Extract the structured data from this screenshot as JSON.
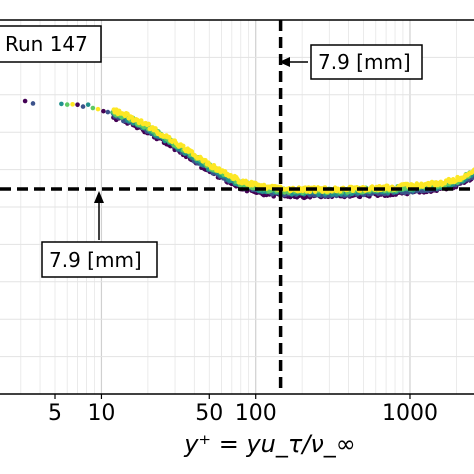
{
  "chart_data": {
    "type": "scatter",
    "x_scale": "log",
    "xlim": [
      2.2,
      2600
    ],
    "x_ticks": [
      {
        "value": 5,
        "label": "5"
      },
      {
        "value": 10,
        "label": "10"
      },
      {
        "value": 50,
        "label": "50"
      },
      {
        "value": 100,
        "label": "100"
      },
      {
        "value": 1000,
        "label": "1000"
      }
    ],
    "xlabel": "y⁺ = yu_τ/ν_∞",
    "ylim": [
      0,
      1
    ],
    "y_ticks_labeled": false,
    "grid": true,
    "legend_box": {
      "text": "Run 147",
      "placement": "top-left"
    },
    "colormap": [
      "#440154",
      "#3b528b",
      "#21918c",
      "#5ec962",
      "#fde725"
    ],
    "trend": [
      {
        "x": 3,
        "y": 0.78
      },
      {
        "x": 4,
        "y": 0.775
      },
      {
        "x": 6,
        "y": 0.775
      },
      {
        "x": 8,
        "y": 0.77
      },
      {
        "x": 10,
        "y": 0.76
      },
      {
        "x": 15,
        "y": 0.735
      },
      {
        "x": 20,
        "y": 0.71
      },
      {
        "x": 30,
        "y": 0.665
      },
      {
        "x": 50,
        "y": 0.605
      },
      {
        "x": 80,
        "y": 0.56
      },
      {
        "x": 120,
        "y": 0.543
      },
      {
        "x": 200,
        "y": 0.538
      },
      {
        "x": 400,
        "y": 0.54
      },
      {
        "x": 800,
        "y": 0.545
      },
      {
        "x": 1500,
        "y": 0.555
      },
      {
        "x": 2000,
        "y": 0.565
      },
      {
        "x": 2600,
        "y": 0.59
      }
    ],
    "vertical_reference": {
      "x": 145,
      "annotation": "7.9 [mm]"
    },
    "horizontal_reference": {
      "y": 0.548,
      "annotation": "7.9 [mm]"
    }
  }
}
